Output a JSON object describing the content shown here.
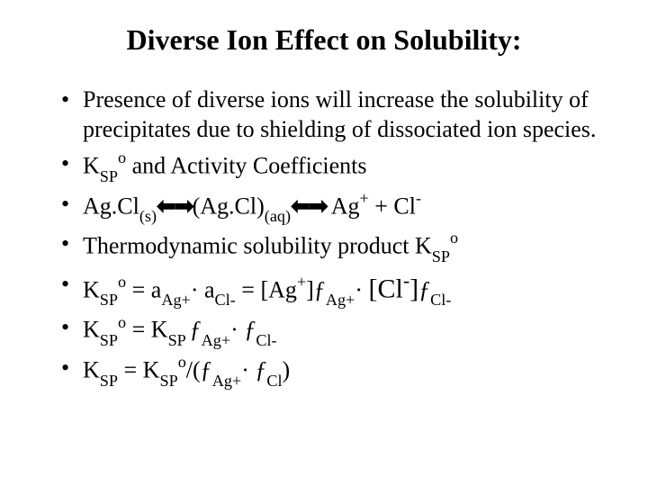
{
  "title": "Diverse Ion Effect on Solubility:",
  "bullets": {
    "b1": "Presence of diverse ions will increase the solubility of precipitates due to shielding of dissociated ion species.",
    "b2_pre": "K",
    "b2_sub1": "SP",
    "b2_sup1": "o",
    "b2_post": " and Activity Coefficients",
    "b3_a": "Ag.Cl",
    "b3_sub_s": "(s)",
    "b3_arrows": "⬅➡",
    "b3_b": "(Ag.Cl)",
    "b3_sub_aq": "(aq)",
    "b3_c": " Ag",
    "b3_sup_plus": "+",
    "b3_d": " + Cl",
    "b3_sup_minus": "-",
    "b4_a": "Thermodynamic solubility product K",
    "b4_sub": "SP",
    "b4_sup": "o",
    "b5_k": "K",
    "b5_sp": "SP",
    "b5_o": "o",
    "b5_eq": " = a",
    "b5_aag": "Ag+",
    "b5_dot": "· ",
    "b5_a2": "a",
    "b5_acl": "Cl-",
    "b5_eq2": " = [Ag",
    "b5_plus": "+",
    "b5_brf": "]ƒ",
    "b5_fag": "Ag+",
    "b5_big": "[Cl",
    "b5_minus": "-",
    "b5_brf2": "]",
    "b5_f2": "ƒ",
    "b5_fcl": "Cl-",
    "b6_k": "K",
    "b6_sp": "SP",
    "b6_o": "o",
    "b6_eq": " = K",
    "b6_sp2": "SP ",
    "b6_f1": "ƒ",
    "b6_fag": "Ag+",
    "b6_dot": "· ",
    "b6_f2": "ƒ",
    "b6_fcl": "Cl-",
    "b7_k": "K",
    "b7_sp": "SP",
    "b7_eq": " = K",
    "b7_sp2": "SP",
    "b7_o": "o",
    "b7_sl": "/(ƒ",
    "b7_fag": "Ag+",
    "b7_dot": "· ",
    "b7_f2": "ƒ",
    "b7_fcl": "Cl",
    "b7_end": ")"
  },
  "style": {
    "background": "#ffffff",
    "text_color": "#000000",
    "title_fontsize": 32,
    "body_fontsize": 26,
    "font_family": "Times New Roman"
  }
}
